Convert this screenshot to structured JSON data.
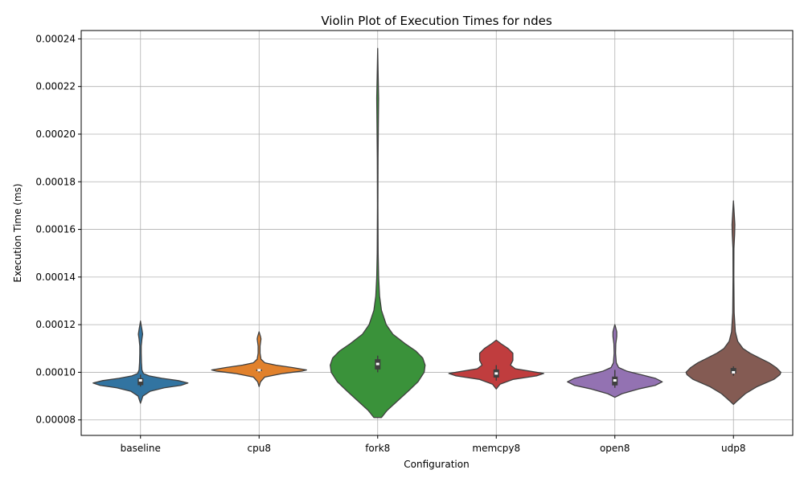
{
  "chart_data": {
    "type": "violin",
    "title": "Violin Plot of Execution Times for ndes",
    "xlabel": "Configuration",
    "ylabel": "Execution Time (ms)",
    "ylim": [
      7.35e-05,
      0.0002435
    ],
    "yticks": [
      {
        "value": 8e-05,
        "label": "0.00008"
      },
      {
        "value": 0.0001,
        "label": "0.00010"
      },
      {
        "value": 0.00012,
        "label": "0.00012"
      },
      {
        "value": 0.00014,
        "label": "0.00014"
      },
      {
        "value": 0.00016,
        "label": "0.00016"
      },
      {
        "value": 0.00018,
        "label": "0.00018"
      },
      {
        "value": 0.0002,
        "label": "0.00020"
      },
      {
        "value": 0.00022,
        "label": "0.00022"
      },
      {
        "value": 0.00024,
        "label": "0.00024"
      }
    ],
    "grid": true,
    "series": [
      {
        "category": "baseline",
        "color": "#3274a1",
        "q1": 9.46e-05,
        "median": 9.66e-05,
        "q3": 9.75e-05,
        "whisker_low": 9.4e-05,
        "whisker_high": 9.9e-05,
        "density": [
          [
            8.7e-05,
            0.0
          ],
          [
            9e-05,
            0.05
          ],
          [
            9.2e-05,
            0.2
          ],
          [
            9.35e-05,
            0.5
          ],
          [
            9.45e-05,
            0.85
          ],
          [
            9.55e-05,
            1.0
          ],
          [
            9.65e-05,
            0.8
          ],
          [
            9.75e-05,
            0.45
          ],
          [
            9.85e-05,
            0.18
          ],
          [
            9.95e-05,
            0.06
          ],
          [
            0.000101,
            0.03
          ],
          [
            0.000104,
            0.02
          ],
          [
            0.000108,
            0.015
          ],
          [
            0.000111,
            0.015
          ],
          [
            0.000114,
            0.03
          ],
          [
            0.000116,
            0.045
          ],
          [
            0.000118,
            0.03
          ],
          [
            0.00012,
            0.012
          ],
          [
            0.0001215,
            0.0
          ]
        ]
      },
      {
        "category": "cpu8",
        "color": "#e1812c",
        "q1": 0.0001005,
        "median": 0.0001009,
        "q3": 0.0001012,
        "whisker_low": 0.0001,
        "whisker_high": 0.0001015,
        "density": [
          [
            9.4e-05,
            0.0
          ],
          [
            9.6e-05,
            0.03
          ],
          [
            9.8e-05,
            0.12
          ],
          [
            9.95e-05,
            0.5
          ],
          [
            0.0001005,
            0.9
          ],
          [
            0.000101,
            1.0
          ],
          [
            0.000102,
            0.7
          ],
          [
            0.000103,
            0.35
          ],
          [
            0.000104,
            0.12
          ],
          [
            0.0001055,
            0.04
          ],
          [
            0.000108,
            0.02
          ],
          [
            0.000111,
            0.02
          ],
          [
            0.000114,
            0.04
          ],
          [
            0.000115,
            0.03
          ],
          [
            0.000117,
            0.0
          ]
        ]
      },
      {
        "category": "fork8",
        "color": "#3a923a",
        "q1": 0.0001012,
        "median": 0.0001035,
        "q3": 0.0001055,
        "whisker_low": 0.0001,
        "whisker_high": 0.000107,
        "density": [
          [
            8.1e-05,
            0.0
          ],
          [
            8.1e-05,
            0.08
          ],
          [
            8.4e-05,
            0.2
          ],
          [
            8.8e-05,
            0.42
          ],
          [
            9.2e-05,
            0.64
          ],
          [
            9.6e-05,
            0.85
          ],
          [
            0.0001,
            0.98
          ],
          [
            0.000103,
            1.0
          ],
          [
            0.000106,
            0.95
          ],
          [
            0.000109,
            0.8
          ],
          [
            0.000112,
            0.58
          ],
          [
            0.000116,
            0.32
          ],
          [
            0.00012,
            0.18
          ],
          [
            0.000126,
            0.08
          ],
          [
            0.000132,
            0.04
          ],
          [
            0.00014,
            0.02
          ],
          [
            0.00015,
            0.01
          ],
          [
            0.00017,
            0.005
          ],
          [
            0.00019,
            0.008
          ],
          [
            0.000205,
            0.015
          ],
          [
            0.000215,
            0.02
          ],
          [
            0.000225,
            0.01
          ],
          [
            0.000236,
            0.0
          ]
        ]
      },
      {
        "category": "memcpy8",
        "color": "#c03d3e",
        "q1": 9.78e-05,
        "median": 9.95e-05,
        "q3": 0.0001012,
        "whisker_low": 9.65e-05,
        "whisker_high": 0.000103,
        "density": [
          [
            9.3e-05,
            0.0
          ],
          [
            9.5e-05,
            0.08
          ],
          [
            9.7e-05,
            0.35
          ],
          [
            9.85e-05,
            0.85
          ],
          [
            9.95e-05,
            1.0
          ],
          [
            0.0001005,
            0.7
          ],
          [
            0.0001015,
            0.4
          ],
          [
            0.000103,
            0.3
          ],
          [
            0.000105,
            0.35
          ],
          [
            0.000108,
            0.35
          ],
          [
            0.00011,
            0.25
          ],
          [
            0.000112,
            0.1
          ],
          [
            0.0001135,
            0.0
          ]
        ]
      },
      {
        "category": "open8",
        "color": "#9372b2",
        "q1": 9.45e-05,
        "median": 9.66e-05,
        "q3": 9.82e-05,
        "whisker_low": 9.35e-05,
        "whisker_high": 0.000101,
        "density": [
          [
            8.95e-05,
            0.0
          ],
          [
            9.1e-05,
            0.15
          ],
          [
            9.3e-05,
            0.5
          ],
          [
            9.45e-05,
            0.85
          ],
          [
            9.6e-05,
            1.0
          ],
          [
            9.75e-05,
            0.85
          ],
          [
            9.9e-05,
            0.55
          ],
          [
            0.0001005,
            0.25
          ],
          [
            0.000102,
            0.08
          ],
          [
            0.000104,
            0.03
          ],
          [
            0.000108,
            0.015
          ],
          [
            0.000112,
            0.02
          ],
          [
            0.000115,
            0.04
          ],
          [
            0.000117,
            0.04
          ],
          [
            0.000119,
            0.015
          ],
          [
            0.00012,
            0.0
          ]
        ]
      },
      {
        "category": "udp8",
        "color": "#845b53",
        "q1": 9.95e-05,
        "median": 0.0001,
        "q3": 0.0001018,
        "whisker_low": 9.85e-05,
        "whisker_high": 0.0001025,
        "density": [
          [
            8.65e-05,
            0.0
          ],
          [
            8.8e-05,
            0.08
          ],
          [
            9.1e-05,
            0.25
          ],
          [
            9.4e-05,
            0.5
          ],
          [
            9.7e-05,
            0.85
          ],
          [
            9.9e-05,
            0.98
          ],
          [
            0.0001,
            1.0
          ],
          [
            0.000102,
            0.9
          ],
          [
            0.000104,
            0.75
          ],
          [
            0.000106,
            0.55
          ],
          [
            0.000108,
            0.35
          ],
          [
            0.00011,
            0.2
          ],
          [
            0.000113,
            0.09
          ],
          [
            0.000117,
            0.04
          ],
          [
            0.000125,
            0.015
          ],
          [
            0.00014,
            0.008
          ],
          [
            0.000152,
            0.01
          ],
          [
            0.000158,
            0.025
          ],
          [
            0.000162,
            0.03
          ],
          [
            0.000167,
            0.015
          ],
          [
            0.000172,
            0.0
          ]
        ]
      }
    ]
  }
}
